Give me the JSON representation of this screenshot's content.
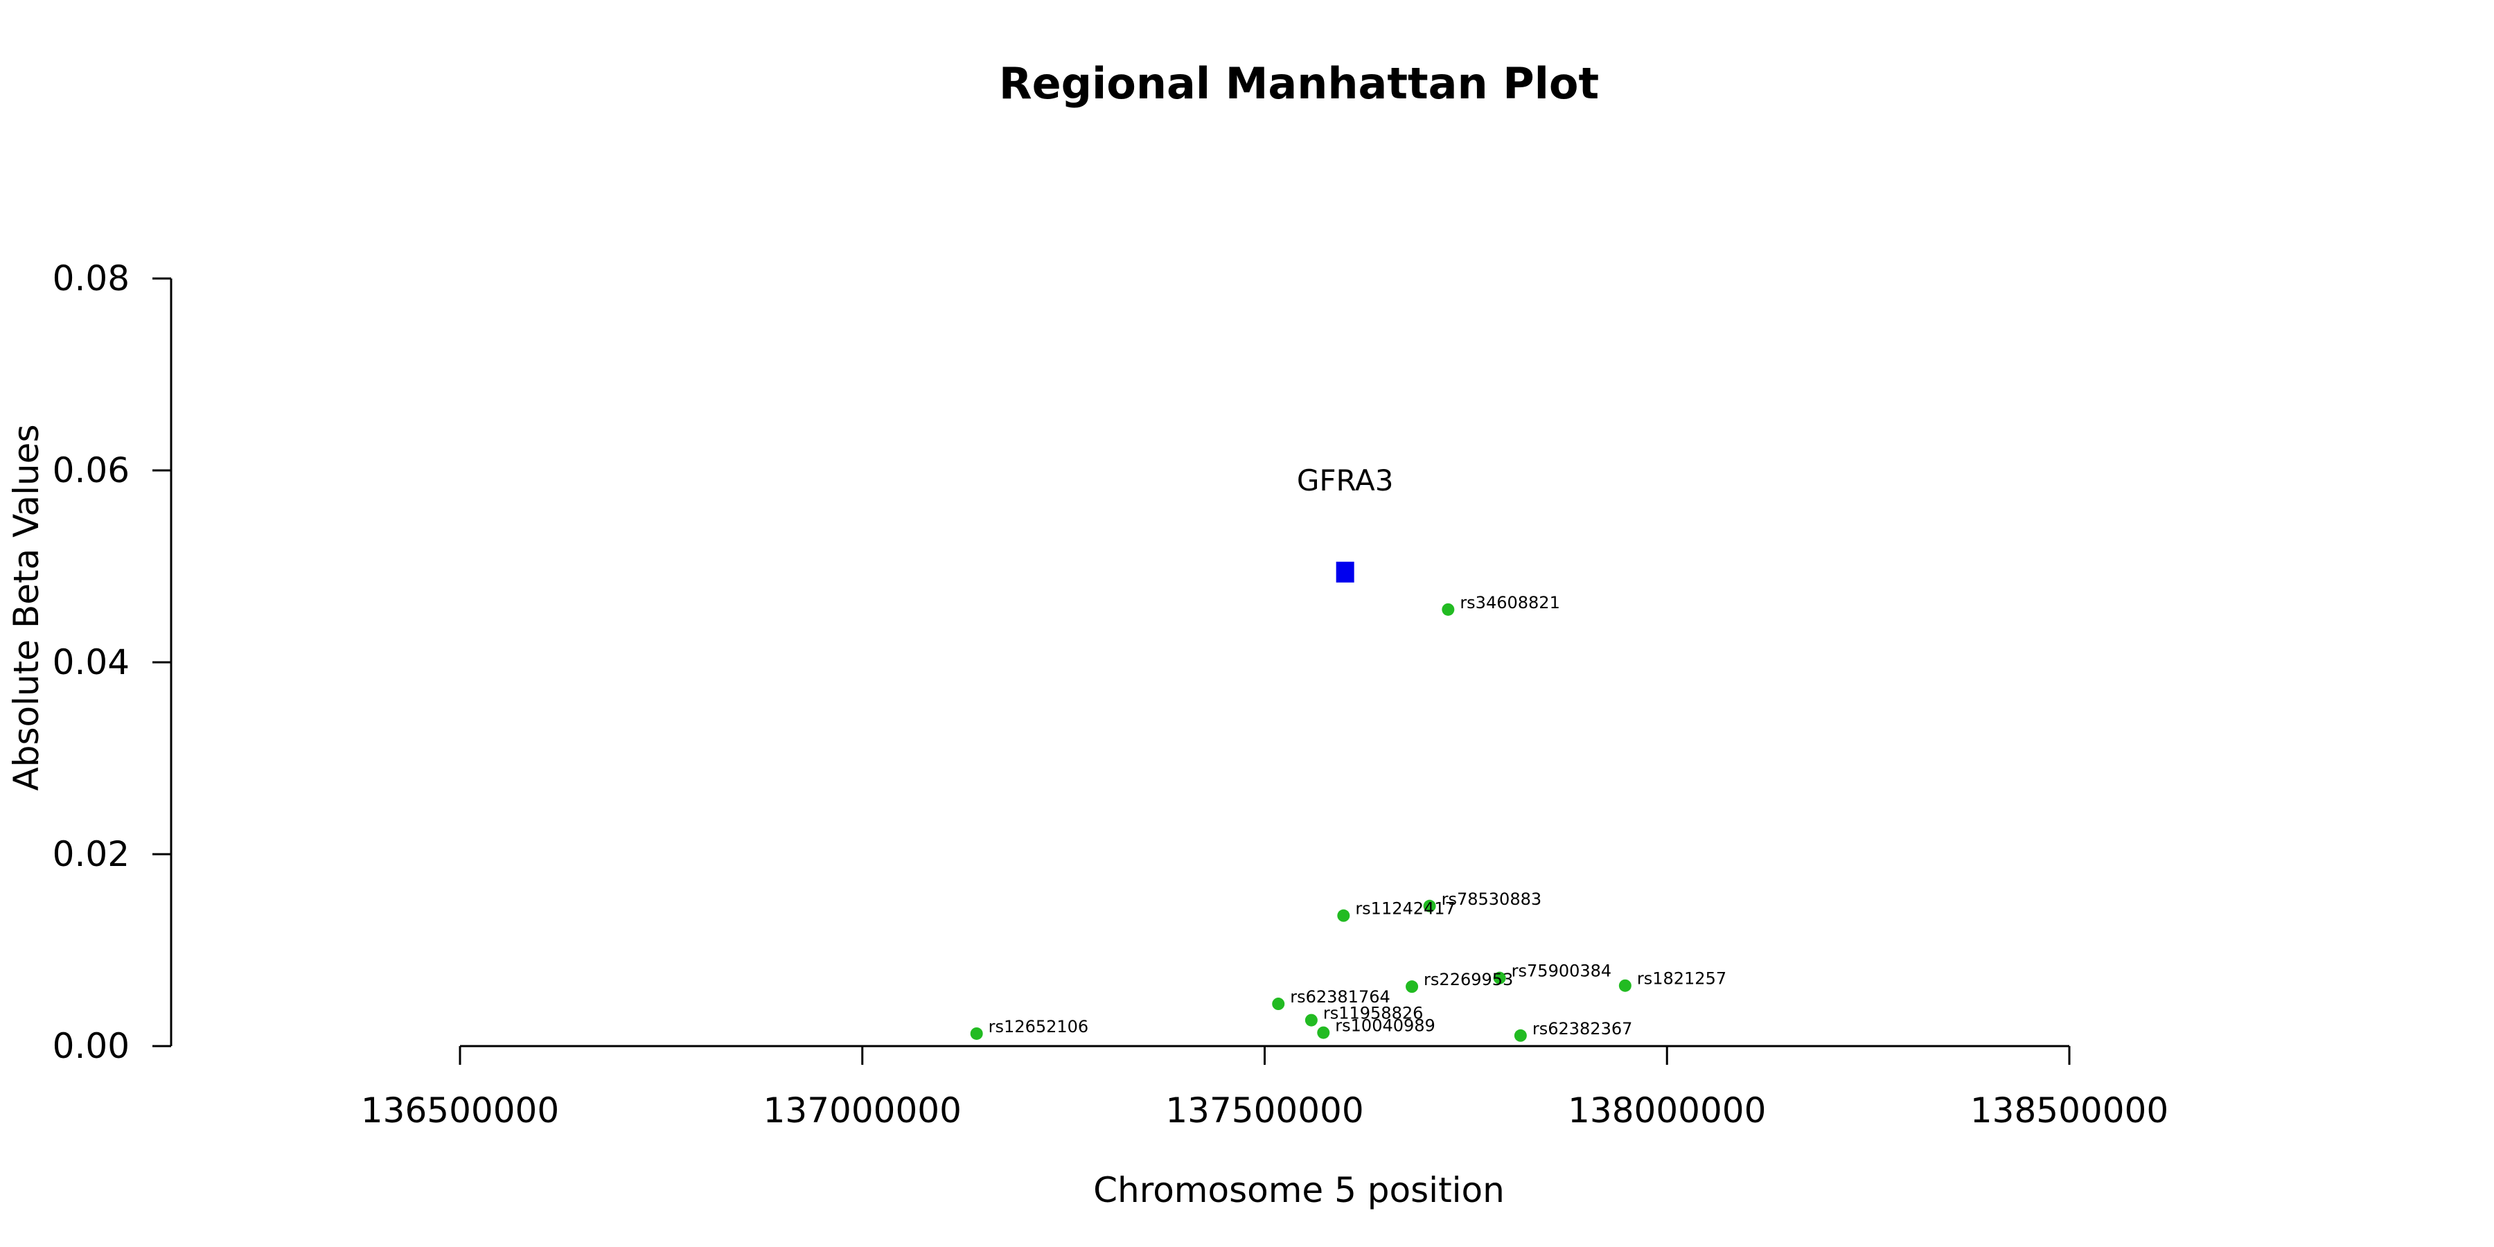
{
  "chart_data": {
    "type": "scatter",
    "title": "Regional Manhattan Plot",
    "xlabel": "Chromosome 5 position",
    "ylabel": "Absolute Beta Values",
    "xlim": [
      136500000,
      138500000
    ],
    "ylim": [
      0.0,
      0.08
    ],
    "x_ticks": [
      136500000,
      137000000,
      137500000,
      138000000,
      138500000
    ],
    "x_tick_labels": [
      "136500000",
      "137000000",
      "137500000",
      "138000000",
      "138500000"
    ],
    "y_ticks": [
      0.0,
      0.02,
      0.04,
      0.06,
      0.08
    ],
    "y_tick_labels": [
      "0.00",
      "0.02",
      "0.04",
      "0.06",
      "0.08"
    ],
    "grid": false,
    "gene": {
      "label": "GFRA3",
      "x": 137600000,
      "y": 0.0494,
      "color": "#0000ee",
      "marker": "square"
    },
    "snp_color": "#22bb22",
    "points": [
      {
        "label": "rs34608821",
        "x": 137728000,
        "y": 0.0455
      },
      {
        "label": "rs78530883",
        "x": 137705000,
        "y": 0.0146
      },
      {
        "label": "rs11242417",
        "x": 137598000,
        "y": 0.0136
      },
      {
        "label": "rs75900384",
        "x": 137792000,
        "y": 0.0071
      },
      {
        "label": "rs1821257",
        "x": 137948000,
        "y": 0.0063
      },
      {
        "label": "rs2269953",
        "x": 137683000,
        "y": 0.0062
      },
      {
        "label": "rs62381764",
        "x": 137517000,
        "y": 0.0044
      },
      {
        "label": "rs11958826",
        "x": 137558000,
        "y": 0.0027
      },
      {
        "label": "rs10040989",
        "x": 137573000,
        "y": 0.0014
      },
      {
        "label": "rs12652106",
        "x": 137142000,
        "y": 0.0013
      },
      {
        "label": "rs62382367",
        "x": 137818000,
        "y": 0.0011
      }
    ]
  }
}
